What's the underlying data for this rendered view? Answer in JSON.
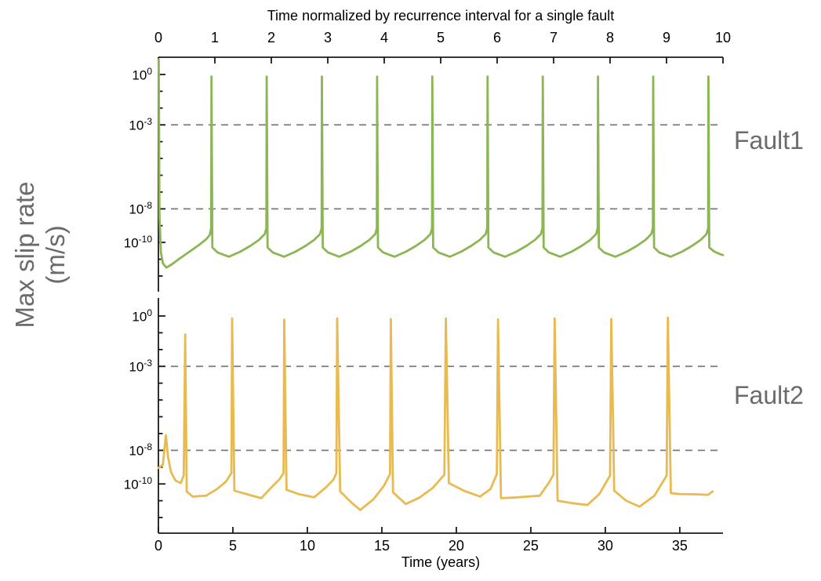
{
  "figure": {
    "ylabel_line1": "Max slip rate",
    "ylabel_line2": "(m/s)",
    "colors": {
      "fault1_line": "#8cb654",
      "fault2_line": "#e8ba50",
      "gridline_dashed": "#7a7a7a",
      "axis": "#1a1a1a",
      "side_labels": "#6b6b6b"
    }
  },
  "chart_data": [
    {
      "type": "line",
      "name": "fault1",
      "side_label": "Fault1",
      "color": "#8cb654",
      "x_axis": {
        "position": "top",
        "title": "Time normalized by recurrence interval for a single fault",
        "min": 0,
        "max": 10,
        "ticks": [
          0,
          1,
          2,
          3,
          4,
          5,
          6,
          7,
          8,
          9,
          10
        ]
      },
      "y_axis": {
        "scale": "log10",
        "labeled_exponents": [
          0,
          -3,
          -8,
          -10
        ],
        "all_tick_exponents": [
          0,
          -1,
          -2,
          -3,
          -4,
          -5,
          -6,
          -7,
          -8,
          -9,
          -10,
          -11,
          -12
        ],
        "dashed_gridline_exponents": [
          -3,
          -8
        ]
      },
      "points_log10": [
        [
          0.005,
          0.9
        ],
        [
          0.02,
          -8.5
        ],
        [
          0.045,
          -10.6
        ],
        [
          0.08,
          -11.25
        ],
        [
          0.14,
          -11.5
        ],
        [
          0.24,
          -11.3
        ],
        [
          0.38,
          -10.95
        ],
        [
          0.55,
          -10.55
        ],
        [
          0.72,
          -10.15
        ],
        [
          0.85,
          -9.8
        ],
        [
          0.91,
          -9.55
        ],
        [
          0.935,
          -9.15
        ],
        [
          0.94,
          -0.12
        ],
        [
          0.955,
          -10.3
        ],
        [
          1.05,
          -10.6
        ],
        [
          1.25,
          -10.85
        ],
        [
          1.45,
          -10.55
        ],
        [
          1.63,
          -10.2
        ],
        [
          1.78,
          -9.85
        ],
        [
          1.885,
          -9.5
        ],
        [
          1.913,
          -9.15
        ],
        [
          1.918,
          -0.12
        ],
        [
          1.933,
          -10.3
        ],
        [
          2.028,
          -10.6
        ],
        [
          2.228,
          -10.85
        ],
        [
          2.428,
          -10.55
        ],
        [
          2.608,
          -10.2
        ],
        [
          2.758,
          -9.85
        ],
        [
          2.863,
          -9.5
        ],
        [
          2.891,
          -9.15
        ],
        [
          2.896,
          -0.12
        ],
        [
          2.911,
          -10.3
        ],
        [
          3.006,
          -10.6
        ],
        [
          3.206,
          -10.85
        ],
        [
          3.406,
          -10.55
        ],
        [
          3.586,
          -10.2
        ],
        [
          3.736,
          -9.85
        ],
        [
          3.841,
          -9.5
        ],
        [
          3.869,
          -9.15
        ],
        [
          3.874,
          -0.12
        ],
        [
          3.889,
          -10.3
        ],
        [
          3.984,
          -10.6
        ],
        [
          4.184,
          -10.85
        ],
        [
          4.384,
          -10.55
        ],
        [
          4.564,
          -10.2
        ],
        [
          4.714,
          -9.85
        ],
        [
          4.819,
          -9.5
        ],
        [
          4.847,
          -9.15
        ],
        [
          4.852,
          -0.12
        ],
        [
          4.867,
          -10.3
        ],
        [
          4.962,
          -10.6
        ],
        [
          5.162,
          -10.85
        ],
        [
          5.362,
          -10.55
        ],
        [
          5.542,
          -10.2
        ],
        [
          5.692,
          -9.85
        ],
        [
          5.797,
          -9.5
        ],
        [
          5.825,
          -9.15
        ],
        [
          5.83,
          -0.12
        ],
        [
          5.845,
          -10.3
        ],
        [
          5.94,
          -10.6
        ],
        [
          6.14,
          -10.85
        ],
        [
          6.34,
          -10.55
        ],
        [
          6.52,
          -10.2
        ],
        [
          6.67,
          -9.85
        ],
        [
          6.775,
          -9.5
        ],
        [
          6.803,
          -9.15
        ],
        [
          6.808,
          -0.12
        ],
        [
          6.823,
          -10.3
        ],
        [
          6.918,
          -10.6
        ],
        [
          7.118,
          -10.85
        ],
        [
          7.318,
          -10.55
        ],
        [
          7.498,
          -10.2
        ],
        [
          7.648,
          -9.85
        ],
        [
          7.753,
          -9.5
        ],
        [
          7.781,
          -9.15
        ],
        [
          7.786,
          -0.12
        ],
        [
          7.801,
          -10.3
        ],
        [
          7.896,
          -10.6
        ],
        [
          8.096,
          -10.85
        ],
        [
          8.296,
          -10.55
        ],
        [
          8.476,
          -10.2
        ],
        [
          8.626,
          -9.85
        ],
        [
          8.731,
          -9.5
        ],
        [
          8.759,
          -9.15
        ],
        [
          8.764,
          -0.12
        ],
        [
          8.779,
          -10.3
        ],
        [
          8.874,
          -10.6
        ],
        [
          9.074,
          -10.85
        ],
        [
          9.274,
          -10.55
        ],
        [
          9.454,
          -10.2
        ],
        [
          9.604,
          -9.85
        ],
        [
          9.709,
          -9.5
        ],
        [
          9.737,
          -9.15
        ],
        [
          9.742,
          -0.12
        ],
        [
          9.757,
          -10.3
        ],
        [
          9.85,
          -10.55
        ],
        [
          9.95,
          -10.7
        ],
        [
          10.0,
          -10.75
        ]
      ]
    },
    {
      "type": "line",
      "name": "fault2",
      "side_label": "Fault2",
      "color": "#e8ba50",
      "x_axis": {
        "position": "bottom",
        "title": "Time (years)",
        "min": 0,
        "max": 37.9,
        "ticks": [
          0,
          5,
          10,
          15,
          20,
          25,
          30,
          35
        ]
      },
      "y_axis": {
        "scale": "log10",
        "labeled_exponents": [
          0,
          -3,
          -8,
          -10
        ],
        "all_tick_exponents": [
          0,
          -1,
          -2,
          -3,
          -4,
          -5,
          -6,
          -7,
          -8,
          -9,
          -10,
          -11,
          -12
        ],
        "dashed_gridline_exponents": [
          -3,
          -8
        ]
      },
      "points_log10": [
        [
          0.0,
          -9.05
        ],
        [
          0.3,
          -8.85
        ],
        [
          0.5,
          -7.1
        ],
        [
          0.65,
          -8.4
        ],
        [
          0.85,
          -9.3
        ],
        [
          1.15,
          -9.8
        ],
        [
          1.5,
          -9.95
        ],
        [
          1.7,
          -9.5
        ],
        [
          1.8,
          -1.1
        ],
        [
          1.9,
          -10.45
        ],
        [
          2.3,
          -10.75
        ],
        [
          3.2,
          -10.7
        ],
        [
          3.95,
          -10.3
        ],
        [
          4.55,
          -9.85
        ],
        [
          4.9,
          -9.35
        ],
        [
          4.95,
          -0.15
        ],
        [
          5.1,
          -10.4
        ],
        [
          5.9,
          -10.6
        ],
        [
          6.9,
          -10.85
        ],
        [
          7.65,
          -10.15
        ],
        [
          8.15,
          -9.7
        ],
        [
          8.4,
          -9.35
        ],
        [
          8.45,
          -0.22
        ],
        [
          8.6,
          -10.35
        ],
        [
          9.4,
          -10.6
        ],
        [
          10.45,
          -10.8
        ],
        [
          11.25,
          -10.2
        ],
        [
          11.75,
          -9.75
        ],
        [
          11.95,
          -9.35
        ],
        [
          12.0,
          -0.15
        ],
        [
          12.2,
          -10.45
        ],
        [
          12.95,
          -11.1
        ],
        [
          13.55,
          -11.55
        ],
        [
          14.45,
          -10.9
        ],
        [
          15.15,
          -10.1
        ],
        [
          15.55,
          -9.4
        ],
        [
          15.6,
          -0.18
        ],
        [
          15.75,
          -10.5
        ],
        [
          16.6,
          -11.2
        ],
        [
          17.55,
          -10.8
        ],
        [
          18.4,
          -10.25
        ],
        [
          19.2,
          -9.45
        ],
        [
          19.3,
          -0.15
        ],
        [
          19.5,
          -9.95
        ],
        [
          20.5,
          -10.4
        ],
        [
          21.6,
          -10.75
        ],
        [
          22.3,
          -10.3
        ],
        [
          22.72,
          -9.4
        ],
        [
          22.8,
          -0.2
        ],
        [
          23.0,
          -10.85
        ],
        [
          24.1,
          -10.8
        ],
        [
          25.6,
          -10.7
        ],
        [
          26.2,
          -9.95
        ],
        [
          26.52,
          -9.45
        ],
        [
          26.6,
          -0.15
        ],
        [
          26.8,
          -11.0
        ],
        [
          27.8,
          -11.15
        ],
        [
          28.8,
          -11.25
        ],
        [
          29.6,
          -10.6
        ],
        [
          30.32,
          -9.5
        ],
        [
          30.4,
          -0.18
        ],
        [
          30.6,
          -10.4
        ],
        [
          31.4,
          -11.0
        ],
        [
          32.3,
          -11.35
        ],
        [
          33.3,
          -10.7
        ],
        [
          34.12,
          -9.5
        ],
        [
          34.2,
          -0.1
        ],
        [
          34.4,
          -10.55
        ],
        [
          35.0,
          -10.6
        ],
        [
          36.2,
          -10.62
        ],
        [
          36.9,
          -10.65
        ],
        [
          37.2,
          -10.45
        ]
      ]
    }
  ]
}
